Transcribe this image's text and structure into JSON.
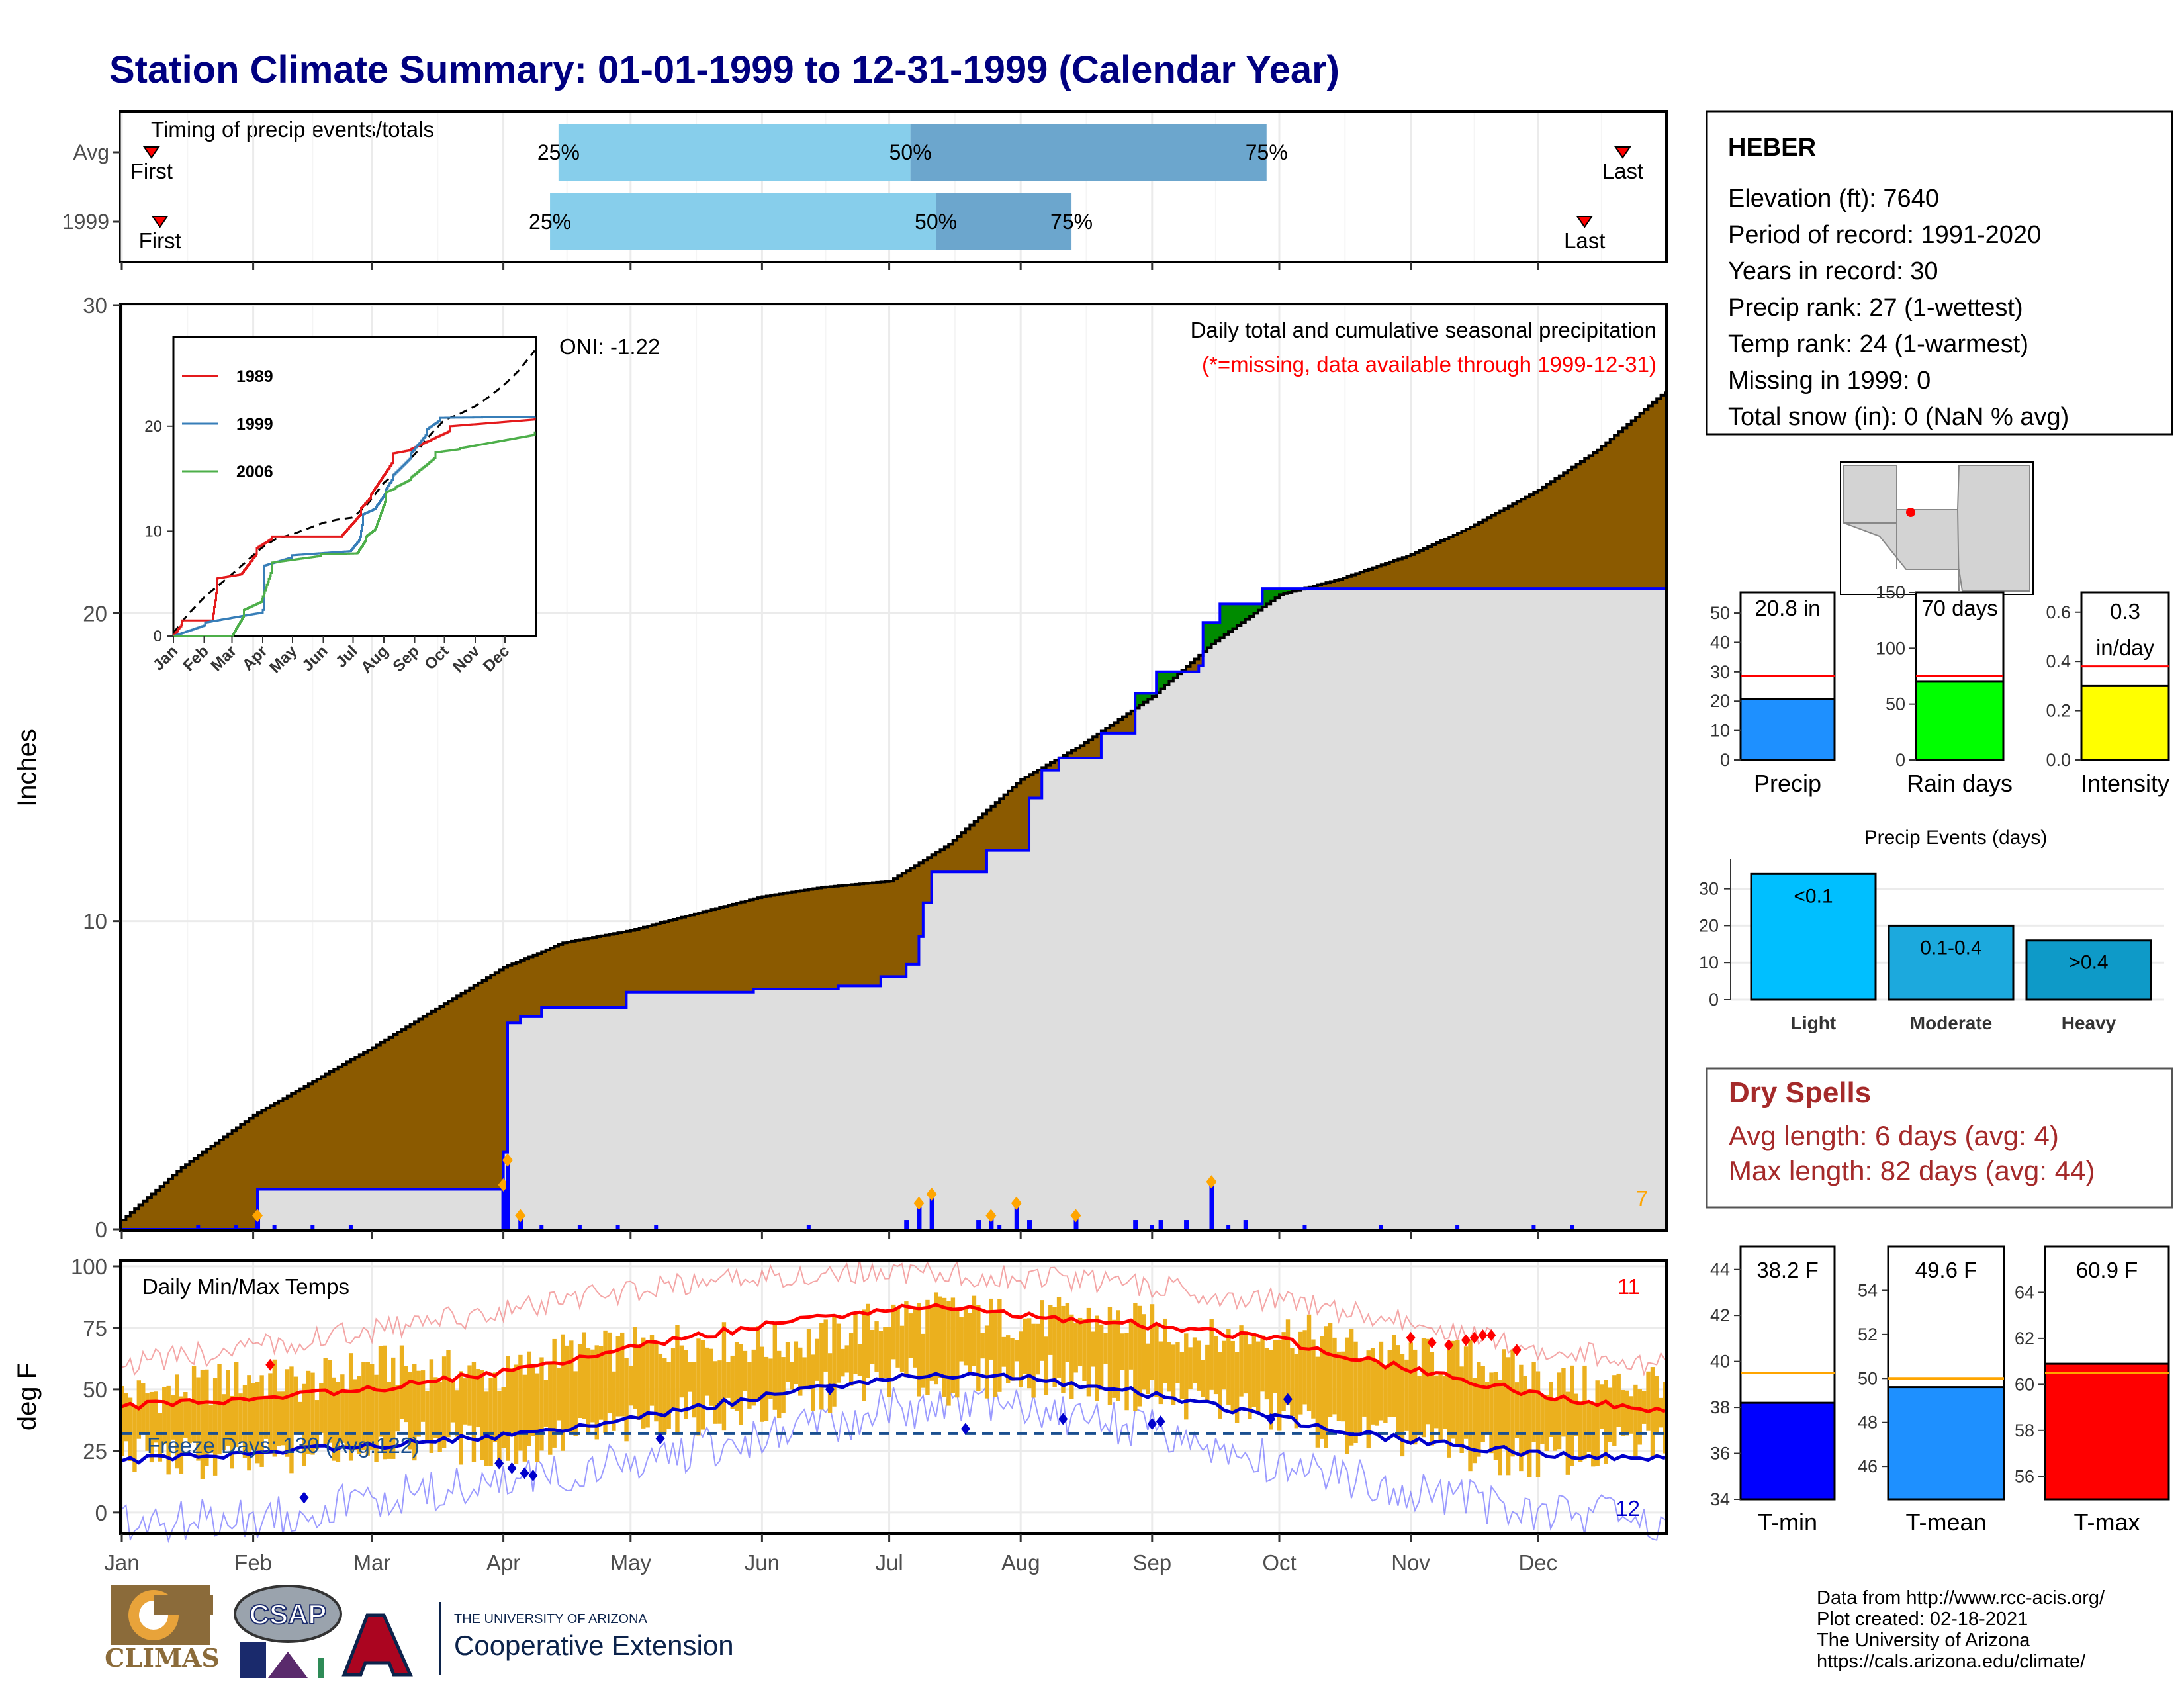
{
  "title": "Station Climate Summary: 01-01-1999 to 12-31-1999 (Calendar Year)",
  "colors": {
    "title": "#000080",
    "light_blue": "#87CEEB",
    "mid_blue": "#6CA6CD",
    "brown": "#8B5A00",
    "green": "#008B00",
    "gray_fill": "#DEDEDE",
    "blue": "#0000FF",
    "red": "#FF0000",
    "gold": "#EBB01E",
    "orange": "#FFA500",
    "dry_spells": "#A52A2A"
  },
  "months": [
    "Jan",
    "Feb",
    "Mar",
    "Apr",
    "May",
    "Jun",
    "Jul",
    "Aug",
    "Sep",
    "Oct",
    "Nov",
    "Dec"
  ],
  "timing": {
    "title": "Timing of precip events/totals",
    "rows": [
      {
        "label": "Avg",
        "p25_doy": 104,
        "p50_doy": 187,
        "p75_doy": 271,
        "first_doy": 8,
        "last_doy": 355,
        "first_label": "First",
        "last_label": "Last"
      },
      {
        "label": "1999",
        "p25_doy": 102,
        "p50_doy": 193,
        "p75_doy": 225,
        "first_doy": 10,
        "last_doy": 346,
        "first_label": "First",
        "last_label": "Last"
      }
    ],
    "p25_label": "25%",
    "p50_label": "50%",
    "p75_label": "75%"
  },
  "station": {
    "name": "HEBER",
    "lines": [
      "Elevation (ft): 7640",
      "Period of record: 1991-2020",
      "Years in record: 30",
      "Precip rank: 27 (1-wettest)",
      "Temp rank: 24 (1-warmest)",
      "Missing in 1999: 0",
      "Total snow (in): 0 (NaN % avg)"
    ]
  },
  "precip_panel": {
    "ylabel": "Inches",
    "header": "Daily total and cumulative seasonal precipitation",
    "note": "(*=missing, data available through 1999-12-31)",
    "oni": "ONI: -1.22",
    "corner_count": "7",
    "yticks": [
      0,
      10,
      20,
      30
    ],
    "ylim": [
      0,
      30
    ]
  },
  "inset": {
    "series": [
      {
        "name": "1989",
        "color": "#E41A1C"
      },
      {
        "name": "1999",
        "color": "#377EB8"
      },
      {
        "name": "2006",
        "color": "#4DAF4A"
      }
    ],
    "yticks": [
      0,
      10,
      20
    ],
    "xticks": [
      "Jan",
      "Feb",
      "Mar",
      "Apr",
      "May",
      "Jun",
      "Jul",
      "Aug",
      "Sep",
      "Oct",
      "Nov",
      "Dec"
    ]
  },
  "temp_panel": {
    "ylabel": "deg F",
    "label": "Daily Min/Max Temps",
    "freeze_label": "Freeze Days: 130 (Avg:122)",
    "count_top": "11",
    "count_bottom": "12",
    "yticks": [
      0,
      25,
      50,
      75,
      100
    ],
    "ylim": [
      -10,
      100
    ],
    "freeze_line": 32
  },
  "bars_top": [
    {
      "value_label": "20.8 in",
      "xlabel": "Precip",
      "value": 20.8,
      "avg": 28.5,
      "ymax": 57,
      "ticks": [
        0,
        10,
        20,
        30,
        40,
        50
      ],
      "color": "#1E90FF"
    },
    {
      "value_label": "70 days",
      "xlabel": "Rain days",
      "value": 70,
      "avg": 75,
      "ymax": 150,
      "ticks": [
        0,
        50,
        100,
        150
      ],
      "color": "#00FF00"
    },
    {
      "value_label": "0.3 in/day",
      "xlabel": "Intensity",
      "value": 0.3,
      "avg": 0.38,
      "ymax": 0.68,
      "ticks": [
        0.0,
        0.2,
        0.4,
        0.6
      ],
      "color": "#FFFF00"
    }
  ],
  "events": {
    "title": "Precip Events (days)",
    "categories": [
      "Light",
      "Moderate",
      "Heavy"
    ],
    "values": [
      34,
      20,
      16
    ],
    "labels": [
      "<0.1",
      "0.1-0.4",
      ">0.4"
    ],
    "colors": [
      "#00BFFF",
      "#1CA9DD",
      "#0E9AC8"
    ],
    "yticks": [
      0,
      10,
      20,
      30
    ]
  },
  "dry_spells": {
    "title": "Dry Spells",
    "avg": "Avg length: 6 days (avg: 4)",
    "max": "Max length: 82 days (avg: 44)"
  },
  "temp_bars": [
    {
      "value_label": "38.2 F",
      "xlabel": "T-min",
      "value": 38.2,
      "avg": 39.5,
      "ylim": [
        34,
        45
      ],
      "ticks": [
        34,
        36,
        38,
        40,
        42,
        44
      ],
      "color": "#0000FF"
    },
    {
      "value_label": "49.6 F",
      "xlabel": "T-mean",
      "value": 49.6,
      "avg": 50.0,
      "ylim": [
        44.5,
        56
      ],
      "ticks": [
        46,
        48,
        50,
        52,
        54
      ],
      "color": "#1E90FF"
    },
    {
      "value_label": "60.9 F",
      "xlabel": "T-max",
      "value": 60.9,
      "avg": 60.5,
      "ylim": [
        55,
        66
      ],
      "ticks": [
        56,
        58,
        60,
        62,
        64
      ],
      "color": "#FF0000"
    }
  ],
  "logos": {
    "climas": "CLIMAS",
    "csap": "CSAP",
    "ua_small": "THE UNIVERSITY OF ARIZONA",
    "coop": "Cooperative Extension"
  },
  "footer": [
    "Data from http://www.rcc-acis.org/",
    "Plot created: 02-18-2021",
    "The University of Arizona",
    "https://cals.arizona.edu/climate/"
  ],
  "chart_data": [
    {
      "type": "area",
      "title": "Daily total and cumulative seasonal precipitation",
      "ylabel": "Inches",
      "ylim": [
        0,
        30
      ],
      "x_unit": "day of year",
      "normal_cumulative": {
        "x": [
          1,
          15,
          32,
          60,
          91,
          105,
          121,
          135,
          152,
          166,
          182,
          196,
          213,
          227,
          244,
          258,
          274,
          288,
          305,
          319,
          335,
          349,
          365
        ],
        "y": [
          0.3,
          2.0,
          3.7,
          5.9,
          8.5,
          9.3,
          9.7,
          10.2,
          10.8,
          11.1,
          11.3,
          12.5,
          14.6,
          15.7,
          17.3,
          19.0,
          20.6,
          21.1,
          21.9,
          22.8,
          24.0,
          25.3,
          27.2
        ]
      },
      "observed_cumulative": {
        "x": [
          1,
          31,
          33,
          90,
          91,
          92,
          95,
          100,
          120,
          150,
          170,
          180,
          186,
          189,
          190,
          192,
          205,
          215,
          218,
          222,
          232,
          240,
          245,
          255,
          256,
          260,
          270,
          365
        ],
        "y": [
          0.0,
          0.0,
          1.3,
          1.3,
          2.5,
          6.7,
          6.9,
          7.2,
          7.7,
          7.8,
          7.9,
          8.2,
          8.6,
          9.5,
          10.6,
          11.6,
          12.3,
          14.0,
          14.9,
          15.3,
          16.1,
          17.4,
          18.1,
          18.3,
          19.7,
          20.3,
          20.8,
          20.8
        ]
      },
      "daily_bars": {
        "x": [
          33,
          91,
          92,
          95,
          186,
          189,
          192,
          203,
          206,
          212,
          215,
          226,
          240,
          246,
          252,
          258,
          266
        ],
        "y": [
          0.4,
          1.4,
          2.2,
          0.4,
          0.3,
          0.8,
          1.1,
          0.3,
          0.4,
          0.8,
          0.3,
          0.4,
          0.3,
          0.3,
          0.3,
          1.5,
          0.3
        ]
      }
    },
    {
      "type": "line",
      "title": "Daily Min/Max Temps",
      "ylabel": "deg F",
      "ylim": [
        -10,
        100
      ],
      "x_unit": "day of year",
      "avg_max": {
        "x": [
          1,
          32,
          60,
          91,
          121,
          152,
          182,
          196,
          213,
          244,
          274,
          305,
          335,
          365
        ],
        "y": [
          43,
          46,
          50,
          57,
          67,
          76,
          83,
          84,
          80,
          76,
          70,
          58,
          48,
          41
        ]
      },
      "avg_min": {
        "x": [
          1,
          32,
          60,
          91,
          121,
          152,
          182,
          196,
          213,
          244,
          274,
          305,
          335,
          365
        ],
        "y": [
          21,
          24,
          27,
          31,
          38,
          47,
          55,
          56,
          55,
          48,
          38,
          29,
          24,
          22
        ]
      },
      "record_max": {
        "x": [
          1,
          32,
          60,
          91,
          121,
          152,
          182,
          213,
          244,
          274,
          305,
          335,
          365
        ],
        "y": [
          60,
          67,
          74,
          82,
          90,
          96,
          98,
          96,
          92,
          86,
          77,
          67,
          60
        ]
      },
      "record_min": {
        "x": [
          1,
          32,
          60,
          91,
          121,
          152,
          182,
          213,
          244,
          274,
          305,
          335,
          365
        ],
        "y": [
          -5,
          -2,
          5,
          12,
          20,
          30,
          42,
          43,
          33,
          20,
          10,
          0,
          -3
        ]
      },
      "observed_max": {
        "x": [
          1,
          15,
          32,
          45,
          60,
          75,
          91,
          105,
          121,
          135,
          152,
          166,
          182,
          196,
          213,
          227,
          244,
          258,
          274,
          288,
          305,
          319,
          335,
          349,
          365
        ],
        "y": [
          47,
          50,
          55,
          52,
          60,
          58,
          55,
          65,
          66,
          70,
          68,
          70,
          80,
          82,
          78,
          79,
          76,
          70,
          74,
          69,
          63,
          62,
          55,
          50,
          55
        ]
      },
      "observed_min": {
        "x": [
          1,
          15,
          32,
          45,
          60,
          75,
          91,
          105,
          121,
          135,
          152,
          166,
          182,
          196,
          213,
          227,
          244,
          258,
          274,
          288,
          305,
          319,
          335,
          349,
          365
        ],
        "y": [
          25,
          22,
          20,
          25,
          28,
          30,
          25,
          30,
          35,
          40,
          42,
          48,
          55,
          52,
          56,
          54,
          48,
          45,
          40,
          32,
          30,
          24,
          22,
          25,
          30
        ]
      }
    },
    {
      "type": "bar",
      "title": "Precip Events (days)",
      "categories": [
        "Light",
        "Moderate",
        "Heavy"
      ],
      "values": [
        34,
        20,
        16
      ]
    }
  ]
}
